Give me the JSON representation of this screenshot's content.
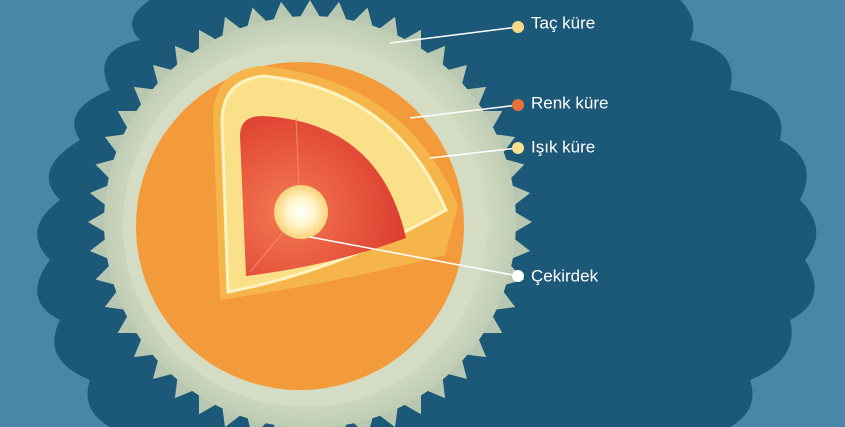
{
  "labels": [
    {
      "text": "Taç küre"
    },
    {
      "text": "Renk küre"
    },
    {
      "text": "Işık küre"
    },
    {
      "text": "Çekirdek"
    }
  ]
}
